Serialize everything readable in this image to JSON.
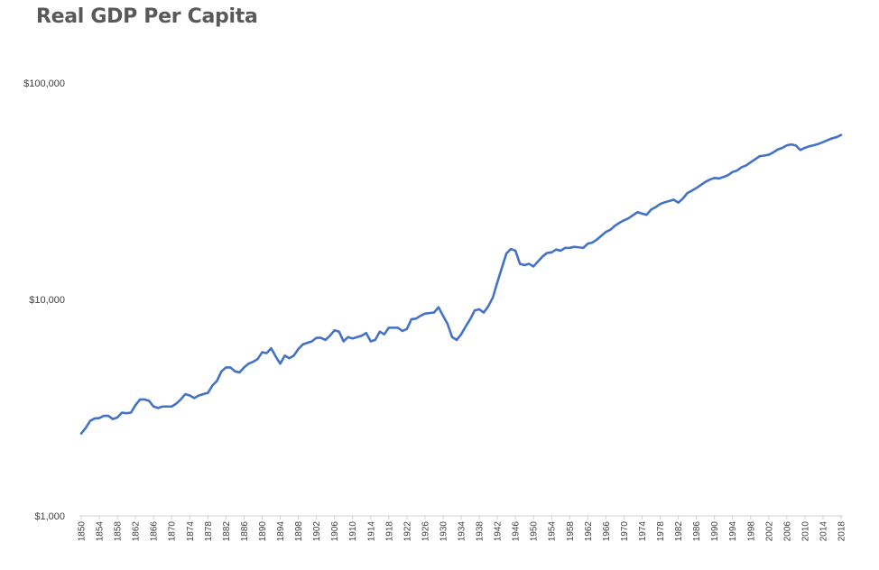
{
  "chart_data": {
    "type": "line",
    "title": "Real GDP Per Capita",
    "xlabel": "",
    "ylabel": "",
    "yscale": "log",
    "ylim": [
      1000,
      100000
    ],
    "grid": false,
    "legend": "none",
    "line_color": "#4472C4",
    "y_ticks": [
      {
        "value": 1000,
        "label": "$1,000"
      },
      {
        "value": 10000,
        "label": "$10,000"
      },
      {
        "value": 100000,
        "label": "$100,000"
      }
    ],
    "x_ticks": [
      "1850",
      "1854",
      "1858",
      "1862",
      "1866",
      "1870",
      "1874",
      "1878",
      "1882",
      "1886",
      "1890",
      "1894",
      "1898",
      "1902",
      "1906",
      "1910",
      "1914",
      "1918",
      "1922",
      "1926",
      "1930",
      "1934",
      "1938",
      "1942",
      "1946",
      "1950",
      "1954",
      "1958",
      "1962",
      "1966",
      "1970",
      "1974",
      "1978",
      "1982",
      "1986",
      "1990",
      "1994",
      "1998",
      "2002",
      "2006",
      "2010",
      "2014",
      "2018"
    ],
    "series": [
      {
        "x": [
          1850,
          1851,
          1852,
          1853,
          1854,
          1855,
          1856,
          1857,
          1858,
          1859,
          1860,
          1861,
          1862,
          1863,
          1864,
          1865,
          1866,
          1867,
          1868,
          1869,
          1870,
          1871,
          1872,
          1873,
          1874,
          1875,
          1876,
          1877,
          1878,
          1879,
          1880,
          1881,
          1882,
          1883,
          1884,
          1885,
          1886,
          1887,
          1888,
          1889,
          1890,
          1891,
          1892,
          1893,
          1894,
          1895,
          1896,
          1897,
          1898,
          1899,
          1900,
          1901,
          1902,
          1903,
          1904,
          1905,
          1906,
          1907,
          1908,
          1909,
          1910,
          1911,
          1912,
          1913,
          1914,
          1915,
          1916,
          1917,
          1918,
          1919,
          1920,
          1921,
          1922,
          1923,
          1924,
          1925,
          1926,
          1927,
          1928,
          1929,
          1930,
          1931,
          1932,
          1933,
          1934,
          1935,
          1936,
          1937,
          1938,
          1939,
          1940,
          1941,
          1942,
          1943,
          1944,
          1945,
          1946,
          1947,
          1948,
          1949,
          1950,
          1951,
          1952,
          1953,
          1954,
          1955,
          1956,
          1957,
          1958,
          1959,
          1960,
          1961,
          1962,
          1963,
          1964,
          1965,
          1966,
          1967,
          1968,
          1969,
          1970,
          1971,
          1972,
          1973,
          1974,
          1975,
          1976,
          1977,
          1978,
          1979,
          1980,
          1981,
          1982,
          1983,
          1984,
          1985,
          1986,
          1987,
          1988,
          1989,
          1990,
          1991,
          1992,
          1993,
          1994,
          1995,
          1996,
          1997,
          1998,
          1999,
          2000,
          2001,
          2002,
          2003,
          2004,
          2005,
          2006,
          2007,
          2008,
          2009,
          2010,
          2011,
          2012,
          2013,
          2014,
          2015,
          2016,
          2017,
          2018
        ],
        "y": [
          2400,
          2550,
          2750,
          2820,
          2830,
          2900,
          2900,
          2800,
          2850,
          3000,
          2980,
          3000,
          3250,
          3450,
          3450,
          3400,
          3200,
          3150,
          3200,
          3200,
          3200,
          3300,
          3450,
          3650,
          3600,
          3500,
          3600,
          3650,
          3700,
          4000,
          4200,
          4650,
          4850,
          4850,
          4650,
          4600,
          4850,
          5050,
          5150,
          5300,
          5700,
          5650,
          5950,
          5450,
          5050,
          5500,
          5350,
          5500,
          5900,
          6200,
          6300,
          6400,
          6650,
          6650,
          6500,
          6800,
          7200,
          7100,
          6400,
          6700,
          6600,
          6700,
          6800,
          7000,
          6400,
          6500,
          7100,
          6900,
          7400,
          7400,
          7400,
          7150,
          7300,
          8100,
          8150,
          8400,
          8600,
          8650,
          8700,
          9200,
          8400,
          7700,
          6700,
          6500,
          6900,
          7500,
          8100,
          8900,
          9000,
          8700,
          9300,
          10200,
          12000,
          14000,
          16300,
          17100,
          16800,
          14600,
          14400,
          14600,
          14200,
          15000,
          15800,
          16400,
          16500,
          17000,
          16800,
          17300,
          17300,
          17500,
          17400,
          17300,
          18100,
          18300,
          18900,
          19700,
          20500,
          21000,
          21900,
          22600,
          23200,
          23700,
          24500,
          25300,
          24900,
          24600,
          26000,
          26700,
          27600,
          28100,
          28500,
          28900,
          28000,
          29200,
          31000,
          31800,
          32700,
          33800,
          34900,
          35800,
          36400,
          36200,
          36800,
          37500,
          38800,
          39400,
          40800,
          41600,
          43000,
          44400,
          45900,
          46200,
          46600,
          47800,
          49300,
          50100,
          51500,
          52000,
          51400,
          49000,
          50200,
          51000,
          51600,
          52300,
          53300,
          54400,
          55500,
          56200,
          57500
        ]
      }
    ]
  }
}
